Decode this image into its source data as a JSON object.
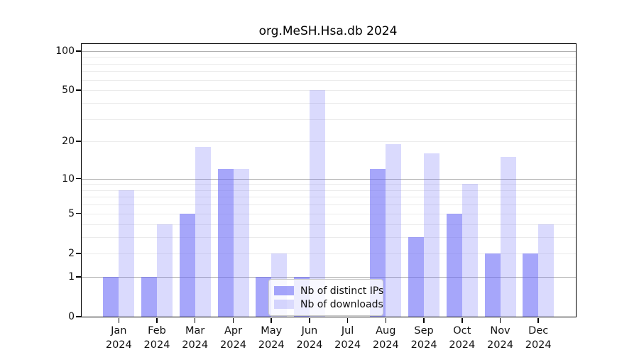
{
  "title": "org.MeSH.Hsa.db 2024",
  "chart_data": {
    "type": "bar",
    "title": "org.MeSH.Hsa.db 2024",
    "xlabel": "",
    "ylabel": "",
    "categories": [
      "Jan\n2024",
      "Feb\n2024",
      "Mar\n2024",
      "Apr\n2024",
      "May\n2024",
      "Jun\n2024",
      "Jul\n2024",
      "Aug\n2024",
      "Sep\n2024",
      "Oct\n2024",
      "Nov\n2024",
      "Dec\n2024"
    ],
    "series": [
      {
        "name": "Nb of distinct IPs",
        "values": [
          1,
          1,
          5,
          12,
          1,
          1,
          0,
          12,
          3,
          5,
          2,
          2
        ],
        "color": "rgba(102,102,246,0.58)"
      },
      {
        "name": "Nb of downloads",
        "values": [
          8,
          4,
          18,
          12,
          2,
          50,
          0,
          19,
          16,
          9,
          15,
          4
        ],
        "color": "rgba(102,102,246,0.24)"
      }
    ],
    "y_scale": "log1p",
    "ylim": [
      0,
      113
    ],
    "y_tick_values": [
      0,
      1,
      2,
      5,
      10,
      20,
      50,
      100
    ],
    "y_major_gridlines": [
      1,
      10,
      100
    ],
    "y_minor_gridlines": [
      2,
      3,
      4,
      5,
      6,
      7,
      8,
      9,
      20,
      30,
      40,
      50,
      60,
      70,
      80,
      90
    ],
    "grid": true,
    "legend_position": "lower-center-inside"
  },
  "legend": {
    "items": [
      {
        "label": "Nb of distinct IPs",
        "color": "rgba(102,102,246,0.58)"
      },
      {
        "label": "Nb of downloads",
        "color": "rgba(102,102,246,0.24)"
      }
    ]
  },
  "colors": {
    "distinct_ips_bar": "#a6a6f7",
    "downloads_bar": "#dcdcf9",
    "major_grid": "#b0b0b0",
    "minor_grid": "#ebebeb",
    "axis": "#000000",
    "legend_border": "#cccccc"
  }
}
